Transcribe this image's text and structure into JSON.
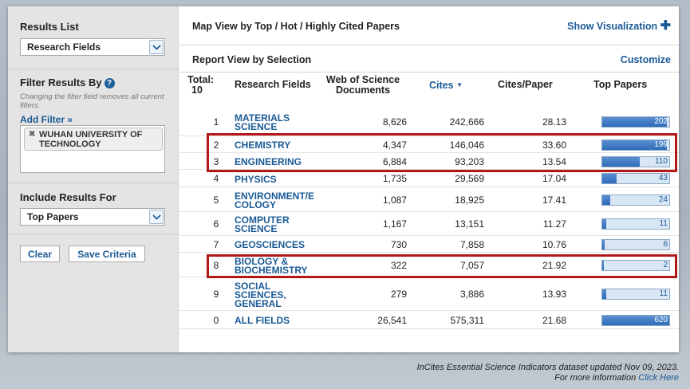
{
  "sidebar": {
    "results_list_heading": "Results List",
    "results_list_value": "Research Fields",
    "filter_heading": "Filter Results By",
    "filter_hint": "Changing the filter field removes all current filters.",
    "add_filter_label": "Add Filter »",
    "active_filter": "WUHAN UNIVERSITY OF TECHNOLOGY",
    "include_heading": "Include Results For",
    "include_value": "Top Papers",
    "clear_button": "Clear",
    "save_button": "Save Criteria"
  },
  "main": {
    "map_view_title": "Map View by Top / Hot / Highly Cited Papers",
    "show_visualization": "Show Visualization",
    "report_view_title": "Report View by Selection",
    "customize": "Customize",
    "total_label": "Total:",
    "total_value": "10",
    "columns": {
      "field": "Research Fields",
      "docs_line1": "Web of Science",
      "docs_line2": "Documents",
      "cites": "Cites",
      "cites_per_paper": "Cites/Paper",
      "top_papers": "Top Papers"
    },
    "rows": [
      {
        "rank": "1",
        "field_line1": "MATERIALS",
        "field_line2": "SCIENCE",
        "field_line3": "",
        "docs": "8,626",
        "cites": "242,666",
        "cpp": "28.13",
        "top_papers": "202",
        "bar_fraction": 0.97
      },
      {
        "rank": "2",
        "field_line1": "CHEMISTRY",
        "field_line2": "",
        "field_line3": "",
        "docs": "4,347",
        "cites": "146,046",
        "cpp": "33.60",
        "top_papers": "199",
        "bar_fraction": 0.96
      },
      {
        "rank": "3",
        "field_line1": "ENGINEERING",
        "field_line2": "",
        "field_line3": "",
        "docs": "6,884",
        "cites": "93,203",
        "cpp": "13.54",
        "top_papers": "110",
        "bar_fraction": 0.56
      },
      {
        "rank": "4",
        "field_line1": "PHYSICS",
        "field_line2": "",
        "field_line3": "",
        "docs": "1,735",
        "cites": "29,569",
        "cpp": "17.04",
        "top_papers": "43",
        "bar_fraction": 0.22
      },
      {
        "rank": "5",
        "field_line1": "ENVIRONMENT/E",
        "field_line2": "COLOGY",
        "field_line3": "",
        "docs": "1,087",
        "cites": "18,925",
        "cpp": "17.41",
        "top_papers": "24",
        "bar_fraction": 0.12
      },
      {
        "rank": "6",
        "field_line1": "COMPUTER",
        "field_line2": "SCIENCE",
        "field_line3": "",
        "docs": "1,167",
        "cites": "13,151",
        "cpp": "11.27",
        "top_papers": "11",
        "bar_fraction": 0.06
      },
      {
        "rank": "7",
        "field_line1": "GEOSCIENCES",
        "field_line2": "",
        "field_line3": "",
        "docs": "730",
        "cites": "7,858",
        "cpp": "10.76",
        "top_papers": "6",
        "bar_fraction": 0.03
      },
      {
        "rank": "8",
        "field_line1": "BIOLOGY &",
        "field_line2": "BIOCHEMISTRY",
        "field_line3": "",
        "docs": "322",
        "cites": "7,057",
        "cpp": "21.92",
        "top_papers": "2",
        "bar_fraction": 0.01
      },
      {
        "rank": "9",
        "field_line1": "SOCIAL",
        "field_line2": "SCIENCES,",
        "field_line3": "GENERAL",
        "docs": "279",
        "cites": "3,886",
        "cpp": "13.93",
        "top_papers": "11",
        "bar_fraction": 0.06
      },
      {
        "rank": "0",
        "field_line1": "ALL FIELDS",
        "field_line2": "",
        "field_line3": "",
        "docs": "26,541",
        "cites": "575,311",
        "cpp": "21.68",
        "top_papers": "620",
        "bar_fraction": 1.0
      }
    ]
  },
  "footer": {
    "line1": "InCites Essential Science Indicators dataset updated Nov 09, 2023.",
    "line2_prefix": "For more information",
    "link": "Click Here"
  },
  "colors": {
    "link_blue": "#1a5a96",
    "highlight_red": "#b31818",
    "bar_blue": "#2e6bb8"
  }
}
